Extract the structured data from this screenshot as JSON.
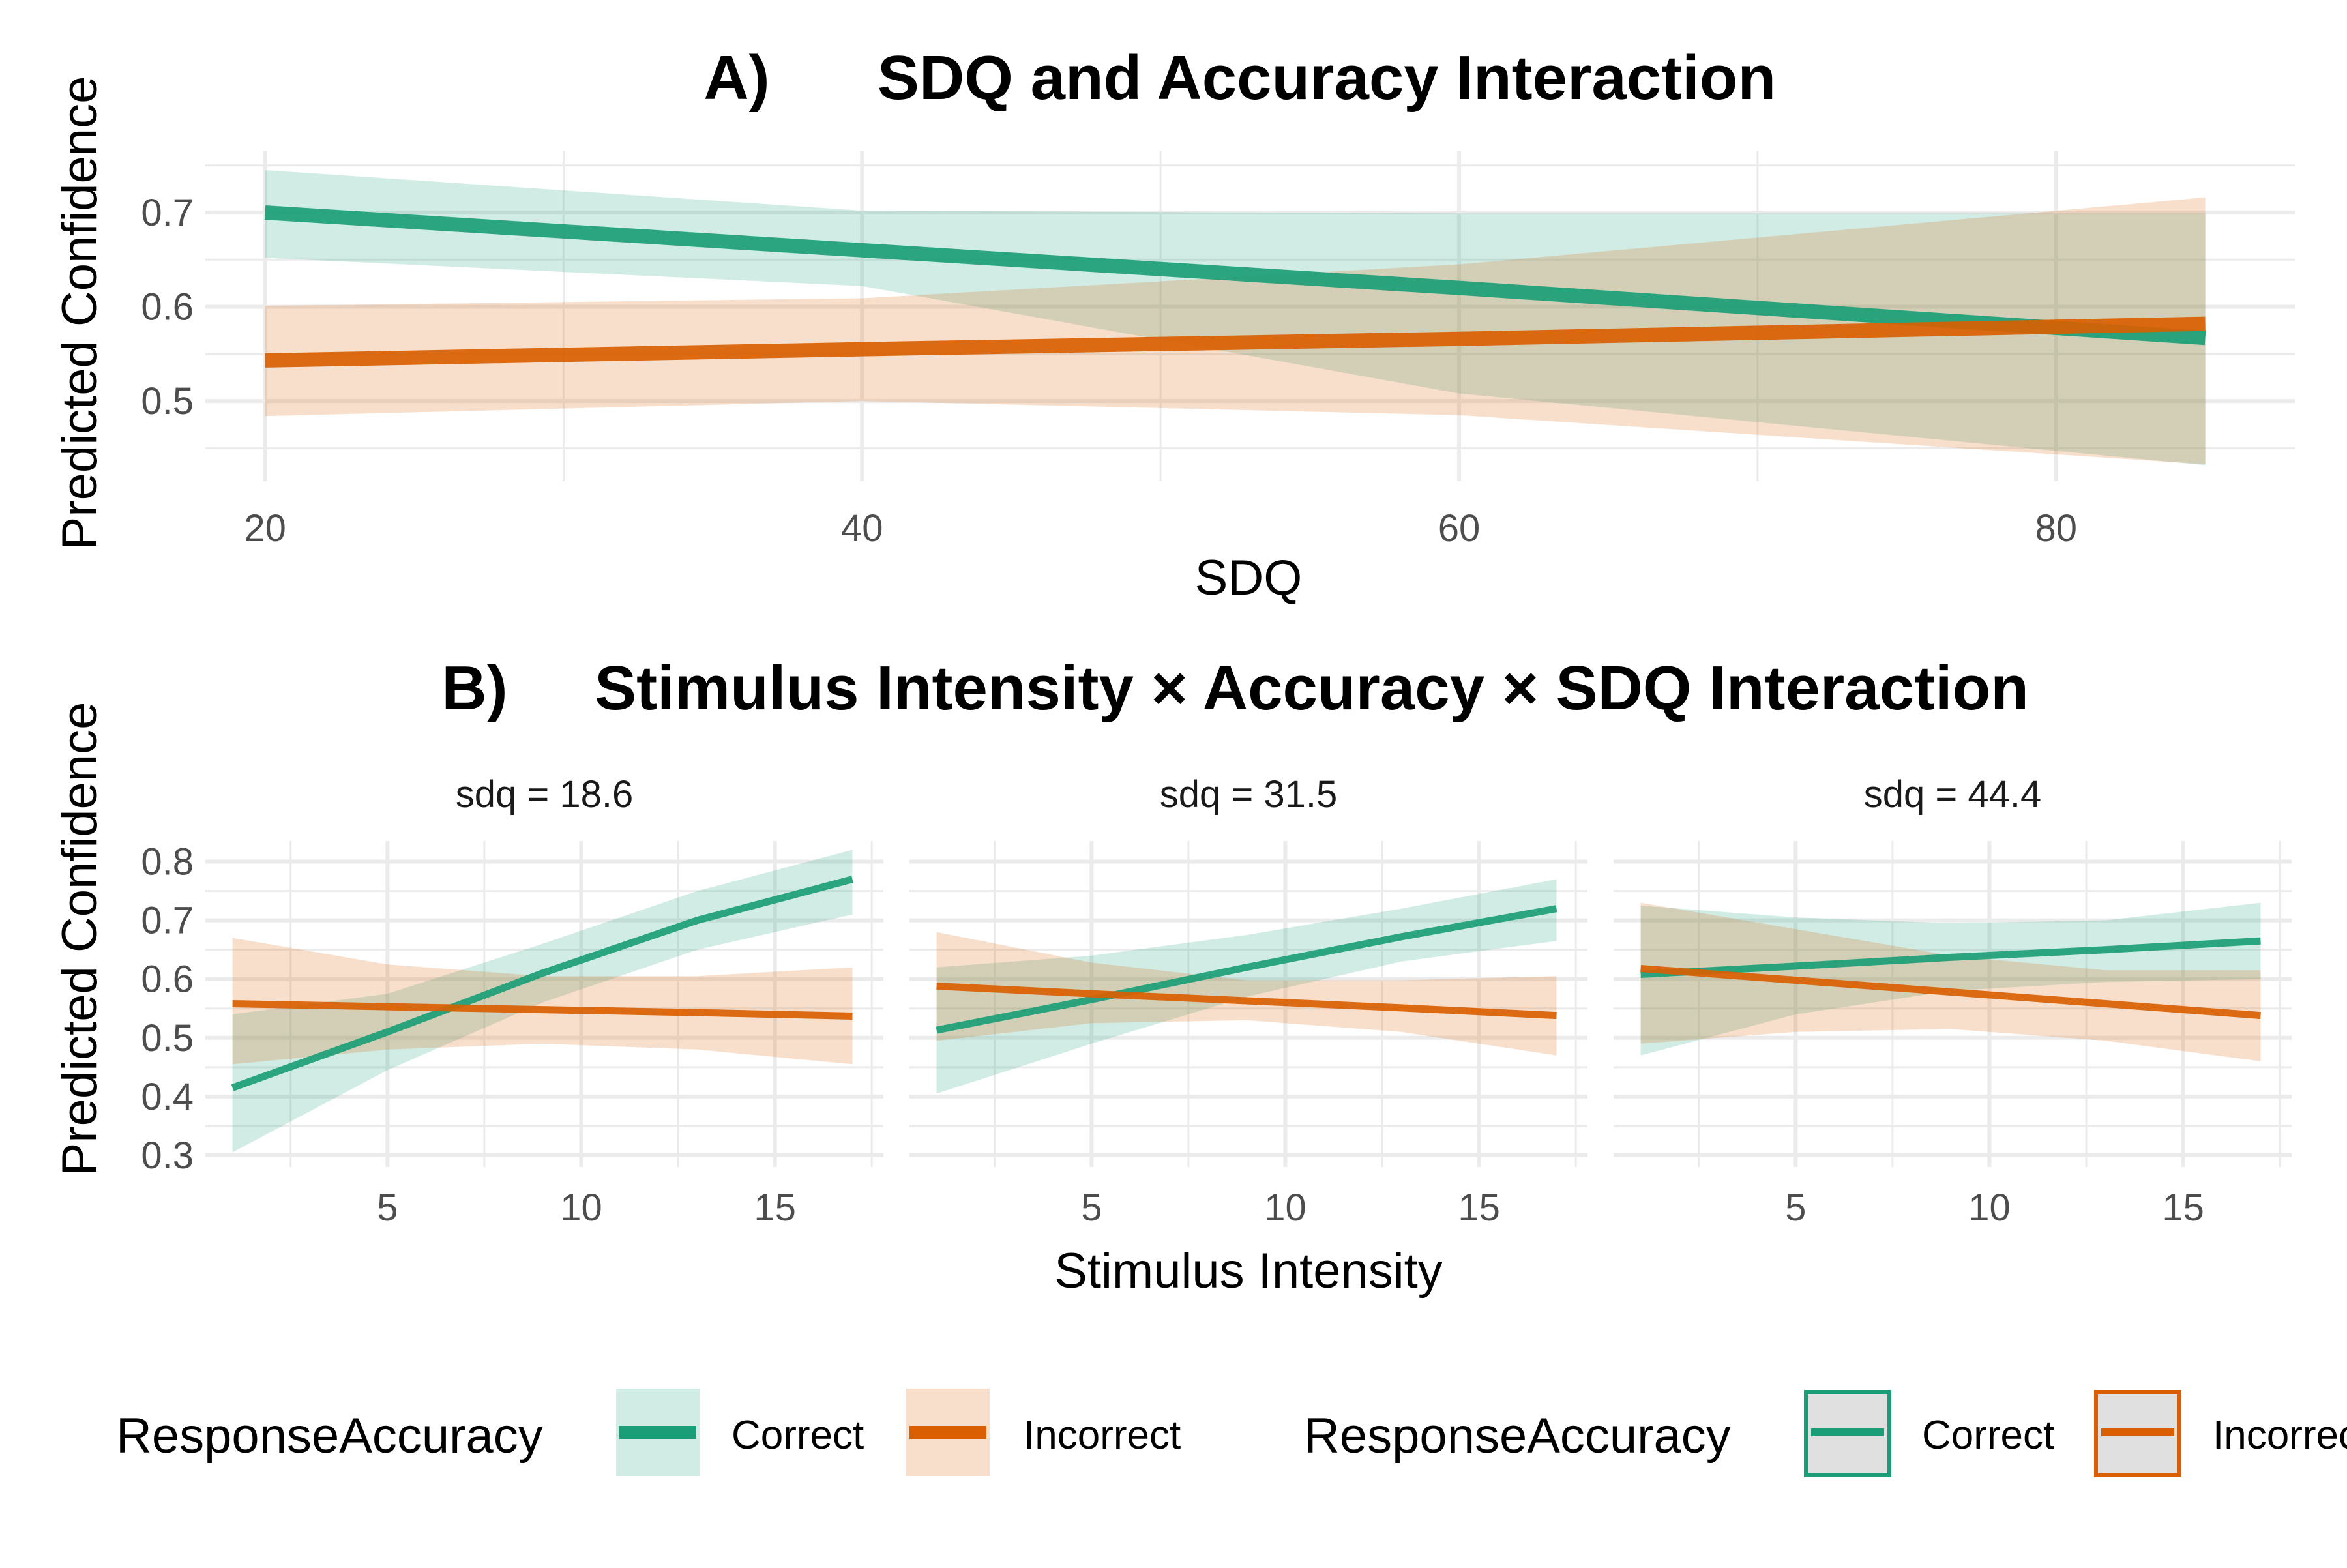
{
  "chart_data": [
    {
      "type": "line",
      "panel_label": "A)",
      "title": "SDQ and Accuracy Interaction",
      "xlabel": "SDQ",
      "ylabel": "Predicted Confidence",
      "xlim": [
        18,
        88
      ],
      "ylim": [
        0.415,
        0.765
      ],
      "x_ticks": [
        20,
        40,
        60,
        80
      ],
      "y_ticks": [
        0.5,
        0.6,
        0.7
      ],
      "grid": true,
      "series": [
        {
          "name": "Correct",
          "color": "#1b9e77",
          "x": [
            20,
            40,
            60,
            85
          ],
          "y": [
            0.7,
            0.66,
            0.62,
            0.567
          ],
          "lower": [
            0.652,
            0.622,
            0.508,
            0.432
          ],
          "upper": [
            0.745,
            0.702,
            0.699,
            0.699
          ]
        },
        {
          "name": "Incorrect",
          "color": "#d95f02",
          "x": [
            20,
            40,
            60,
            85
          ],
          "y": [
            0.543,
            0.555,
            0.566,
            0.582
          ],
          "lower": [
            0.484,
            0.5,
            0.485,
            0.433
          ],
          "upper": [
            0.601,
            0.609,
            0.645,
            0.716
          ]
        }
      ]
    },
    {
      "type": "line",
      "panel_label": "B)",
      "title": "Stimulus Intensity × Accuracy × SDQ Interaction",
      "xlabel": "Stimulus Intensity",
      "ylabel": "Predicted Confidence",
      "xlim": [
        0.3,
        17.8
      ],
      "ylim": [
        0.28,
        0.835
      ],
      "x_ticks": [
        5,
        10,
        15
      ],
      "y_ticks": [
        0.3,
        0.4,
        0.5,
        0.6,
        0.7,
        0.8
      ],
      "grid": true,
      "facets": [
        {
          "label": "sdq = 18.6",
          "series": [
            {
              "name": "Correct",
              "x": [
                1,
                5,
                9,
                13,
                17
              ],
              "y": [
                0.415,
                0.51,
                0.61,
                0.7,
                0.77
              ],
              "lower": [
                0.305,
                0.445,
                0.56,
                0.65,
                0.71
              ],
              "upper": [
                0.54,
                0.575,
                0.66,
                0.75,
                0.82
              ]
            },
            {
              "name": "Incorrect",
              "x": [
                1,
                5,
                9,
                13,
                17
              ],
              "y": [
                0.558,
                0.553,
                0.548,
                0.543,
                0.537
              ],
              "lower": [
                0.455,
                0.48,
                0.49,
                0.48,
                0.455
              ],
              "upper": [
                0.67,
                0.625,
                0.605,
                0.605,
                0.62
              ]
            }
          ]
        },
        {
          "label": "sdq = 31.5",
          "series": [
            {
              "name": "Correct",
              "x": [
                1,
                5,
                9,
                13,
                17
              ],
              "y": [
                0.513,
                0.565,
                0.62,
                0.672,
                0.72
              ],
              "lower": [
                0.405,
                0.49,
                0.57,
                0.63,
                0.665
              ],
              "upper": [
                0.62,
                0.64,
                0.675,
                0.72,
                0.77
              ]
            },
            {
              "name": "Incorrect",
              "x": [
                1,
                5,
                9,
                13,
                17
              ],
              "y": [
                0.588,
                0.575,
                0.563,
                0.551,
                0.538
              ],
              "lower": [
                0.495,
                0.525,
                0.53,
                0.51,
                0.47
              ],
              "upper": [
                0.68,
                0.628,
                0.598,
                0.598,
                0.605
              ]
            }
          ]
        },
        {
          "label": "sdq = 44.4",
          "series": [
            {
              "name": "Correct",
              "x": [
                1,
                5,
                9,
                13,
                17
              ],
              "y": [
                0.608,
                0.622,
                0.637,
                0.65,
                0.665
              ],
              "lower": [
                0.47,
                0.54,
                0.58,
                0.595,
                0.6
              ],
              "upper": [
                0.725,
                0.705,
                0.695,
                0.7,
                0.73
              ]
            },
            {
              "name": "Incorrect",
              "x": [
                1,
                5,
                9,
                13,
                17
              ],
              "y": [
                0.618,
                0.598,
                0.578,
                0.558,
                0.538
              ],
              "lower": [
                0.49,
                0.51,
                0.515,
                0.495,
                0.46
              ],
              "upper": [
                0.73,
                0.685,
                0.64,
                0.615,
                0.615
              ]
            }
          ]
        }
      ]
    }
  ],
  "legends": [
    {
      "title": "ResponseAccuracy",
      "style": "fill",
      "entries": [
        "Correct",
        "Incorrect"
      ]
    },
    {
      "title": "ResponseAccuracy",
      "style": "outline",
      "entries": [
        "Correct",
        "Incorrect"
      ]
    }
  ],
  "colors": {
    "correct": "#1b9e77",
    "incorrect": "#d95f02",
    "grid": "#ebebeb"
  }
}
